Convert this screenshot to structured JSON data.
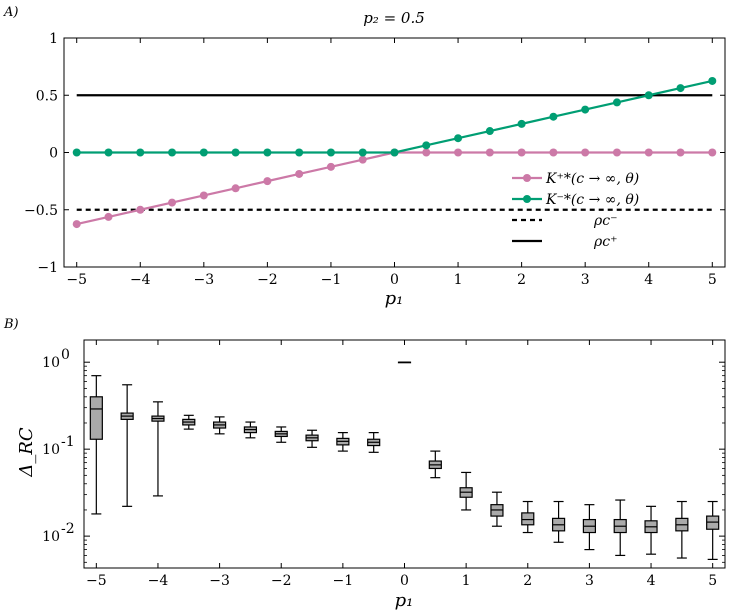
{
  "chart_data": [
    {
      "panel_label": "A)",
      "type": "line",
      "title": "p₂ = 0.5",
      "xlabel": "p₁",
      "ylabel": "",
      "xlim": [
        -5.2,
        5.2
      ],
      "ylim": [
        -1,
        1
      ],
      "xticks": [
        -5,
        -4,
        -3,
        -2,
        -1,
        0,
        1,
        2,
        3,
        4,
        5
      ],
      "yticks": [
        -1,
        -0.5,
        0,
        0.5,
        1
      ],
      "ytick_labels": [
        "−1",
        "−0.5",
        "0",
        "0.5",
        "1"
      ],
      "xtick_labels": [
        "−5",
        "−4",
        "−3",
        "−2",
        "−1",
        "0",
        "1",
        "2",
        "3",
        "4",
        "5"
      ],
      "legend_position": "bottom-right",
      "x": [
        -5,
        -4.5,
        -4,
        -3.5,
        -3,
        -2.5,
        -2,
        -1.5,
        -1,
        -0.5,
        0,
        0.5,
        1,
        1.5,
        2,
        2.5,
        3,
        3.5,
        4,
        4.5,
        5
      ],
      "series": [
        {
          "name": "K⁺*(c → ∞, θ)",
          "color": "#cc79a7",
          "style": "line-marker",
          "values": [
            -0.625,
            -0.5625,
            -0.5,
            -0.4375,
            -0.375,
            -0.3125,
            -0.25,
            -0.1875,
            -0.125,
            -0.0625,
            0,
            0,
            0,
            0,
            0,
            0,
            0,
            0,
            0,
            0,
            0
          ]
        },
        {
          "name": "K⁻*(c → ∞, θ)",
          "color": "#009e73",
          "style": "line-marker",
          "values": [
            0,
            0,
            0,
            0,
            0,
            0,
            0,
            0,
            0,
            0,
            0,
            0.0625,
            0.125,
            0.1875,
            0.25,
            0.3125,
            0.375,
            0.4375,
            0.5,
            0.5625,
            0.625
          ]
        },
        {
          "name": "ρc⁻",
          "color": "#000000",
          "style": "dashed",
          "constant": -0.5
        },
        {
          "name": "ρc⁺",
          "color": "#000000",
          "style": "solid",
          "constant": 0.5
        }
      ]
    },
    {
      "panel_label": "B)",
      "type": "box",
      "title": "",
      "xlabel": "p₁",
      "ylabel": "Δ_RC",
      "yscale": "log",
      "xlim": [
        -5.2,
        5.2
      ],
      "ylim": [
        0.0043,
        1.8
      ],
      "xticks": [
        -5,
        -4,
        -3,
        -2,
        -1,
        0,
        1,
        2,
        3,
        4,
        5
      ],
      "xtick_labels": [
        "−5",
        "−4",
        "−3",
        "−2",
        "−1",
        "0",
        "1",
        "2",
        "3",
        "4",
        "5"
      ],
      "yticks": [
        0.01,
        0.1,
        1
      ],
      "box_color": "#aaaaaa",
      "boxes": [
        {
          "x": -5,
          "whislo": 0.018,
          "q1": 0.13,
          "med": 0.29,
          "q3": 0.4,
          "whishi": 0.7
        },
        {
          "x": -4.5,
          "whislo": 0.022,
          "q1": 0.22,
          "med": 0.24,
          "q3": 0.26,
          "whishi": 0.55
        },
        {
          "x": -4,
          "whislo": 0.029,
          "q1": 0.21,
          "med": 0.225,
          "q3": 0.24,
          "whishi": 0.35
        },
        {
          "x": -3.5,
          "whislo": 0.17,
          "q1": 0.19,
          "med": 0.205,
          "q3": 0.22,
          "whishi": 0.245
        },
        {
          "x": -3,
          "whislo": 0.15,
          "q1": 0.175,
          "med": 0.19,
          "q3": 0.205,
          "whishi": 0.235
        },
        {
          "x": -2.5,
          "whislo": 0.135,
          "q1": 0.155,
          "med": 0.168,
          "q3": 0.18,
          "whishi": 0.205
        },
        {
          "x": -2,
          "whislo": 0.12,
          "q1": 0.14,
          "med": 0.15,
          "q3": 0.16,
          "whishi": 0.18
        },
        {
          "x": -1.5,
          "whislo": 0.105,
          "q1": 0.125,
          "med": 0.135,
          "q3": 0.145,
          "whishi": 0.165
        },
        {
          "x": -1,
          "whislo": 0.095,
          "q1": 0.112,
          "med": 0.123,
          "q3": 0.133,
          "whishi": 0.155
        },
        {
          "x": -0.5,
          "whislo": 0.092,
          "q1": 0.11,
          "med": 0.12,
          "q3": 0.13,
          "whishi": 0.155
        },
        {
          "x": 0,
          "whislo": 1.0,
          "q1": 1.0,
          "med": 1.0,
          "q3": 1.0,
          "whishi": 1.0
        },
        {
          "x": 0.5,
          "whislo": 0.047,
          "q1": 0.06,
          "med": 0.066,
          "q3": 0.073,
          "whishi": 0.095
        },
        {
          "x": 1,
          "whislo": 0.02,
          "q1": 0.028,
          "med": 0.032,
          "q3": 0.036,
          "whishi": 0.054
        },
        {
          "x": 1.5,
          "whislo": 0.013,
          "q1": 0.017,
          "med": 0.02,
          "q3": 0.023,
          "whishi": 0.032
        },
        {
          "x": 2,
          "whislo": 0.011,
          "q1": 0.0135,
          "med": 0.0155,
          "q3": 0.0185,
          "whishi": 0.025
        },
        {
          "x": 2.5,
          "whislo": 0.0085,
          "q1": 0.0115,
          "med": 0.0135,
          "q3": 0.016,
          "whishi": 0.025
        },
        {
          "x": 3,
          "whislo": 0.007,
          "q1": 0.011,
          "med": 0.013,
          "q3": 0.0155,
          "whishi": 0.023
        },
        {
          "x": 3.5,
          "whislo": 0.006,
          "q1": 0.011,
          "med": 0.013,
          "q3": 0.0155,
          "whishi": 0.026
        },
        {
          "x": 4,
          "whislo": 0.0062,
          "q1": 0.011,
          "med": 0.0128,
          "q3": 0.015,
          "whishi": 0.022
        },
        {
          "x": 4.5,
          "whislo": 0.0056,
          "q1": 0.0115,
          "med": 0.0135,
          "q3": 0.016,
          "whishi": 0.025
        },
        {
          "x": 5,
          "whislo": 0.0054,
          "q1": 0.012,
          "med": 0.0145,
          "q3": 0.017,
          "whishi": 0.025
        }
      ]
    }
  ]
}
